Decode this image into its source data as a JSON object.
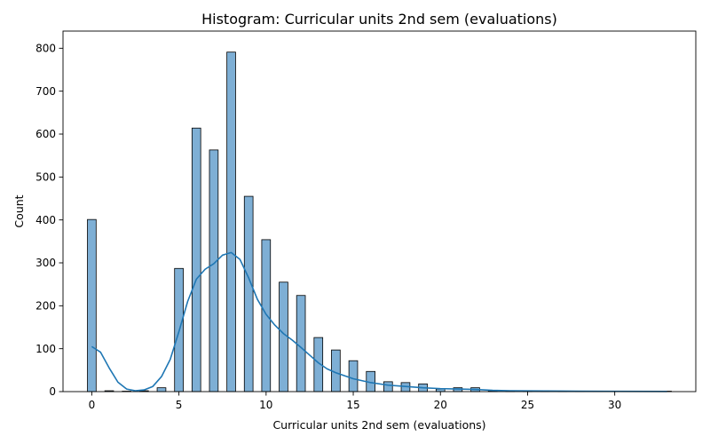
{
  "chart_data": {
    "type": "bar",
    "title": "Histogram: Curricular units 2nd sem (evaluations)",
    "xlabel": "Curricular units 2nd sem (evaluations)",
    "ylabel": "Count",
    "xlim": [
      -1.65,
      34.65
    ],
    "ylim": [
      0,
      840
    ],
    "xticks": [
      0,
      5,
      10,
      15,
      20,
      25,
      30
    ],
    "yticks": [
      0,
      100,
      200,
      300,
      400,
      500,
      600,
      700,
      800
    ],
    "grid": false,
    "legend": "none",
    "bar_color": "#7eafd5",
    "line_color": "#1f77b4",
    "bin_width": 0.5,
    "series": [
      {
        "kind": "histogram",
        "bins": [
          {
            "x": 0,
            "count": 401
          },
          {
            "x": 1,
            "count": 2
          },
          {
            "x": 2,
            "count": 1
          },
          {
            "x": 3,
            "count": 2
          },
          {
            "x": 4,
            "count": 9
          },
          {
            "x": 5,
            "count": 287
          },
          {
            "x": 6,
            "count": 614
          },
          {
            "x": 7,
            "count": 563
          },
          {
            "x": 8,
            "count": 791
          },
          {
            "x": 9,
            "count": 455
          },
          {
            "x": 10,
            "count": 354
          },
          {
            "x": 11,
            "count": 255
          },
          {
            "x": 12,
            "count": 224
          },
          {
            "x": 13,
            "count": 126
          },
          {
            "x": 14,
            "count": 97
          },
          {
            "x": 15,
            "count": 72
          },
          {
            "x": 16,
            "count": 47
          },
          {
            "x": 17,
            "count": 23
          },
          {
            "x": 18,
            "count": 21
          },
          {
            "x": 19,
            "count": 18
          },
          {
            "x": 20,
            "count": 6
          },
          {
            "x": 21,
            "count": 9
          },
          {
            "x": 22,
            "count": 9
          },
          {
            "x": 23,
            "count": 2
          },
          {
            "x": 24,
            "count": 1
          },
          {
            "x": 25,
            "count": 1
          },
          {
            "x": 26,
            "count": 2
          },
          {
            "x": 27,
            "count": 1
          },
          {
            "x": 28,
            "count": 1
          },
          {
            "x": 29,
            "count": 1
          },
          {
            "x": 33,
            "count": 1
          }
        ]
      },
      {
        "kind": "kde",
        "points": [
          {
            "x": 0,
            "y": 105
          },
          {
            "x": 0.5,
            "y": 92
          },
          {
            "x": 1,
            "y": 55
          },
          {
            "x": 1.5,
            "y": 22
          },
          {
            "x": 2,
            "y": 6
          },
          {
            "x": 2.5,
            "y": 2
          },
          {
            "x": 3,
            "y": 4
          },
          {
            "x": 3.5,
            "y": 12
          },
          {
            "x": 4,
            "y": 35
          },
          {
            "x": 4.5,
            "y": 75
          },
          {
            "x": 5,
            "y": 140
          },
          {
            "x": 5.5,
            "y": 210
          },
          {
            "x": 6,
            "y": 262
          },
          {
            "x": 6.5,
            "y": 285
          },
          {
            "x": 7,
            "y": 298
          },
          {
            "x": 7.5,
            "y": 318
          },
          {
            "x": 8,
            "y": 324
          },
          {
            "x": 8.5,
            "y": 308
          },
          {
            "x": 9,
            "y": 265
          },
          {
            "x": 9.5,
            "y": 215
          },
          {
            "x": 10,
            "y": 180
          },
          {
            "x": 10.5,
            "y": 155
          },
          {
            "x": 11,
            "y": 135
          },
          {
            "x": 11.5,
            "y": 120
          },
          {
            "x": 12,
            "y": 103
          },
          {
            "x": 12.5,
            "y": 85
          },
          {
            "x": 13,
            "y": 67
          },
          {
            "x": 13.5,
            "y": 53
          },
          {
            "x": 14,
            "y": 44
          },
          {
            "x": 14.5,
            "y": 37
          },
          {
            "x": 15,
            "y": 30
          },
          {
            "x": 16,
            "y": 21
          },
          {
            "x": 17,
            "y": 15
          },
          {
            "x": 18,
            "y": 12
          },
          {
            "x": 19,
            "y": 9
          },
          {
            "x": 20,
            "y": 7
          },
          {
            "x": 21,
            "y": 6
          },
          {
            "x": 22,
            "y": 5
          },
          {
            "x": 23,
            "y": 3
          },
          {
            "x": 24,
            "y": 2
          },
          {
            "x": 26,
            "y": 1.5
          },
          {
            "x": 28,
            "y": 1
          },
          {
            "x": 30,
            "y": 0.6
          },
          {
            "x": 33,
            "y": 0.3
          }
        ]
      }
    ]
  }
}
